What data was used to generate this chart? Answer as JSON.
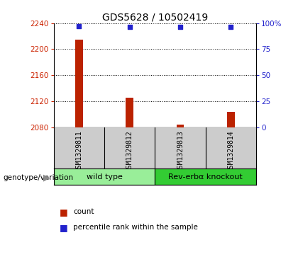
{
  "title": "GDS5628 / 10502419",
  "samples": [
    "GSM1329811",
    "GSM1329812",
    "GSM1329813",
    "GSM1329814"
  ],
  "counts": [
    2215,
    2125,
    2084,
    2103
  ],
  "percentiles": [
    97,
    96.5,
    96.5,
    96.5
  ],
  "ylim_left": [
    2080,
    2240
  ],
  "ylim_right": [
    0,
    100
  ],
  "yticks_left": [
    2080,
    2120,
    2160,
    2200,
    2240
  ],
  "yticks_right": [
    0,
    25,
    50,
    75,
    100
  ],
  "ytick_labels_right": [
    "0",
    "25",
    "50",
    "75",
    "100%"
  ],
  "bar_color": "#bb2200",
  "dot_color": "#2222cc",
  "bar_base": 2080,
  "bar_width": 0.15,
  "groups": [
    {
      "label": "wild type",
      "indices": [
        0,
        1
      ],
      "color": "#99ee99"
    },
    {
      "label": "Rev-erbα knockout",
      "indices": [
        2,
        3
      ],
      "color": "#33cc33"
    }
  ],
  "group_row_label": "genotype/variation",
  "legend_count_label": "count",
  "legend_percentile_label": "percentile rank within the sample",
  "title_fontsize": 10,
  "axis_color_left": "#cc2200",
  "axis_color_right": "#2222cc",
  "sample_label_fontsize": 7,
  "group_label_fontsize": 8,
  "sample_bg_color": "#cccccc",
  "grid_color": "black",
  "grid_linestyle": ":",
  "grid_linewidth": 0.7
}
